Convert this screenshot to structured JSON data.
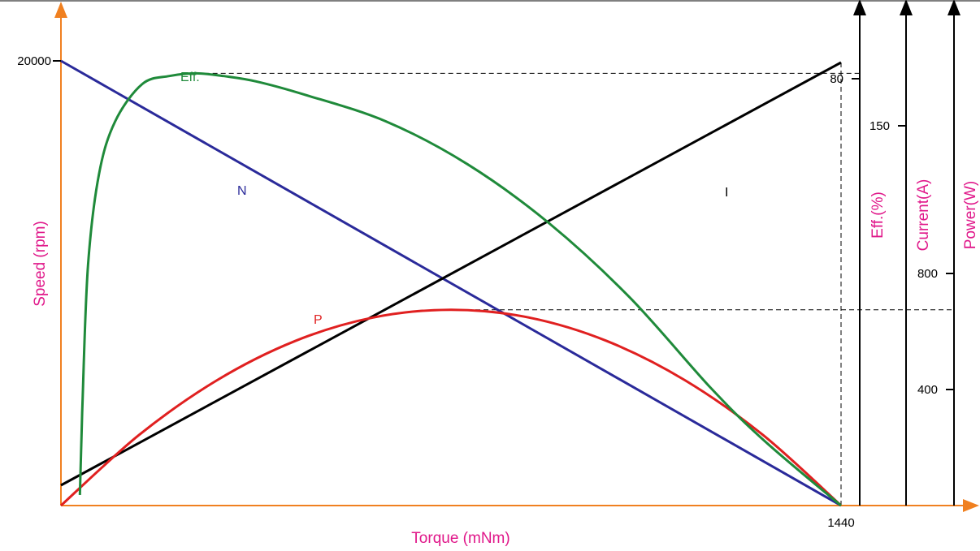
{
  "chart_data": {
    "type": "line",
    "title": "",
    "xlabel": "Torque (mNm)",
    "ylabel": "Speed (rpm)",
    "right_axis_labels": [
      "Eff.(%)",
      "Current(A)",
      "Power(W)"
    ],
    "xlim": [
      0,
      1440
    ],
    "x_ticks": [
      1440
    ],
    "y_ticks": [
      20000
    ],
    "eff_ticks": [
      80
    ],
    "current_ticks": [
      150
    ],
    "power_ticks": [
      400,
      800
    ],
    "series": [
      {
        "name": "N",
        "label": "N",
        "color": "#2a2a9a",
        "x": [
          0,
          1440
        ],
        "y": [
          20000,
          0
        ]
      },
      {
        "name": "I",
        "label": "I",
        "color": "#000000",
        "x": [
          0,
          1440
        ],
        "y": [
          8,
          175
        ]
      },
      {
        "name": "P",
        "label": "P",
        "color": "#e02020",
        "x": [
          0,
          144,
          288,
          432,
          576,
          720,
          864,
          1008,
          1152,
          1296,
          1440
        ],
        "y": [
          0,
          243,
          432,
          567,
          648,
          675,
          648,
          567,
          432,
          243,
          0
        ]
      },
      {
        "name": "Eff.",
        "label": "Eff.",
        "color": "#1f8a3a",
        "x": [
          35,
          40,
          50,
          70,
          100,
          150,
          200,
          250,
          300,
          360,
          450,
          600,
          750,
          900,
          1050,
          1200,
          1300,
          1440
        ],
        "y": [
          2,
          20,
          45,
          62,
          72,
          79,
          80.5,
          81,
          80.5,
          79.5,
          77,
          72,
          64,
          53,
          39,
          22,
          12,
          0
        ]
      }
    ],
    "guides": [
      "Eff. maximum",
      "P maximum",
      "x = 1440"
    ],
    "grid": false
  },
  "colors": {
    "axis_x": "#f08020",
    "axis_left": "#f08020",
    "axis_right": "#000000",
    "title_color": "#e0188a"
  }
}
